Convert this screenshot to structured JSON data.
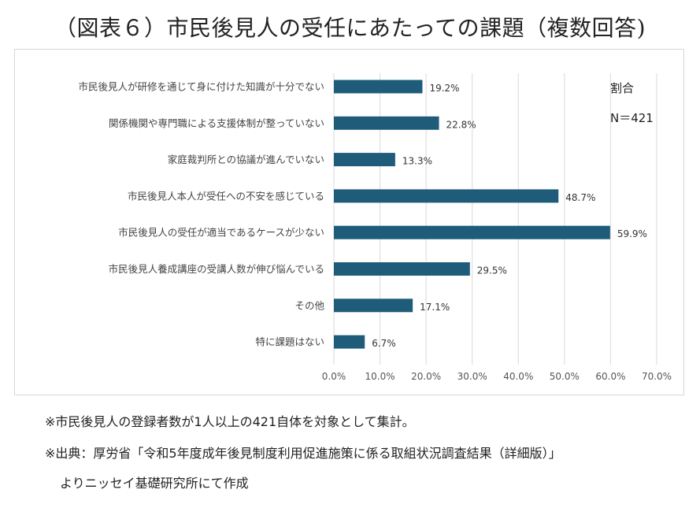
{
  "title": "（図表６）市民後見人の受任にあたっての課題（複数回答)",
  "chart_data": {
    "type": "bar",
    "orientation": "horizontal",
    "categories": [
      "市民後見人が研修を通じて身に付けた知識が十分でない",
      "関係機関や専門職による支援体制が整っていない",
      "家庭裁判所との協議が進んでいない",
      "市民後見人本人が受任への不安を感じている",
      "市民後見人の受任が適当であるケースが少ない",
      "市民後見人養成講座の受講人数が伸び悩んでいる",
      "その他",
      "特に課題はない"
    ],
    "values": [
      19.2,
      22.8,
      13.3,
      48.7,
      59.9,
      29.5,
      17.1,
      6.7
    ],
    "value_labels": [
      "19.2%",
      "22.8%",
      "13.3%",
      "48.7%",
      "59.9%",
      "29.5%",
      "17.1%",
      "6.7%"
    ],
    "xlim": [
      0,
      70
    ],
    "x_ticks": [
      0,
      10,
      20,
      30,
      40,
      50,
      60,
      70
    ],
    "x_tick_labels": [
      "0.0%",
      "10.0%",
      "20.0%",
      "30.0%",
      "40.0%",
      "50.0%",
      "60.0%",
      "70.0%"
    ],
    "legend_lines": [
      "割合",
      "N＝421"
    ],
    "legend_position": "top-right",
    "grid": "vertical",
    "bar_color": "#1e5c7a",
    "grid_color": "#d9d9d9"
  },
  "notes": [
    "※市民後見人の登録者数が1人以上の421自体を対象として集計。",
    "※出典：厚労省「令和5年度成年後見制度利用促進施策に係る取組状況調査結果（詳細版）」",
    "よりニッセイ基礎研究所にて作成"
  ]
}
